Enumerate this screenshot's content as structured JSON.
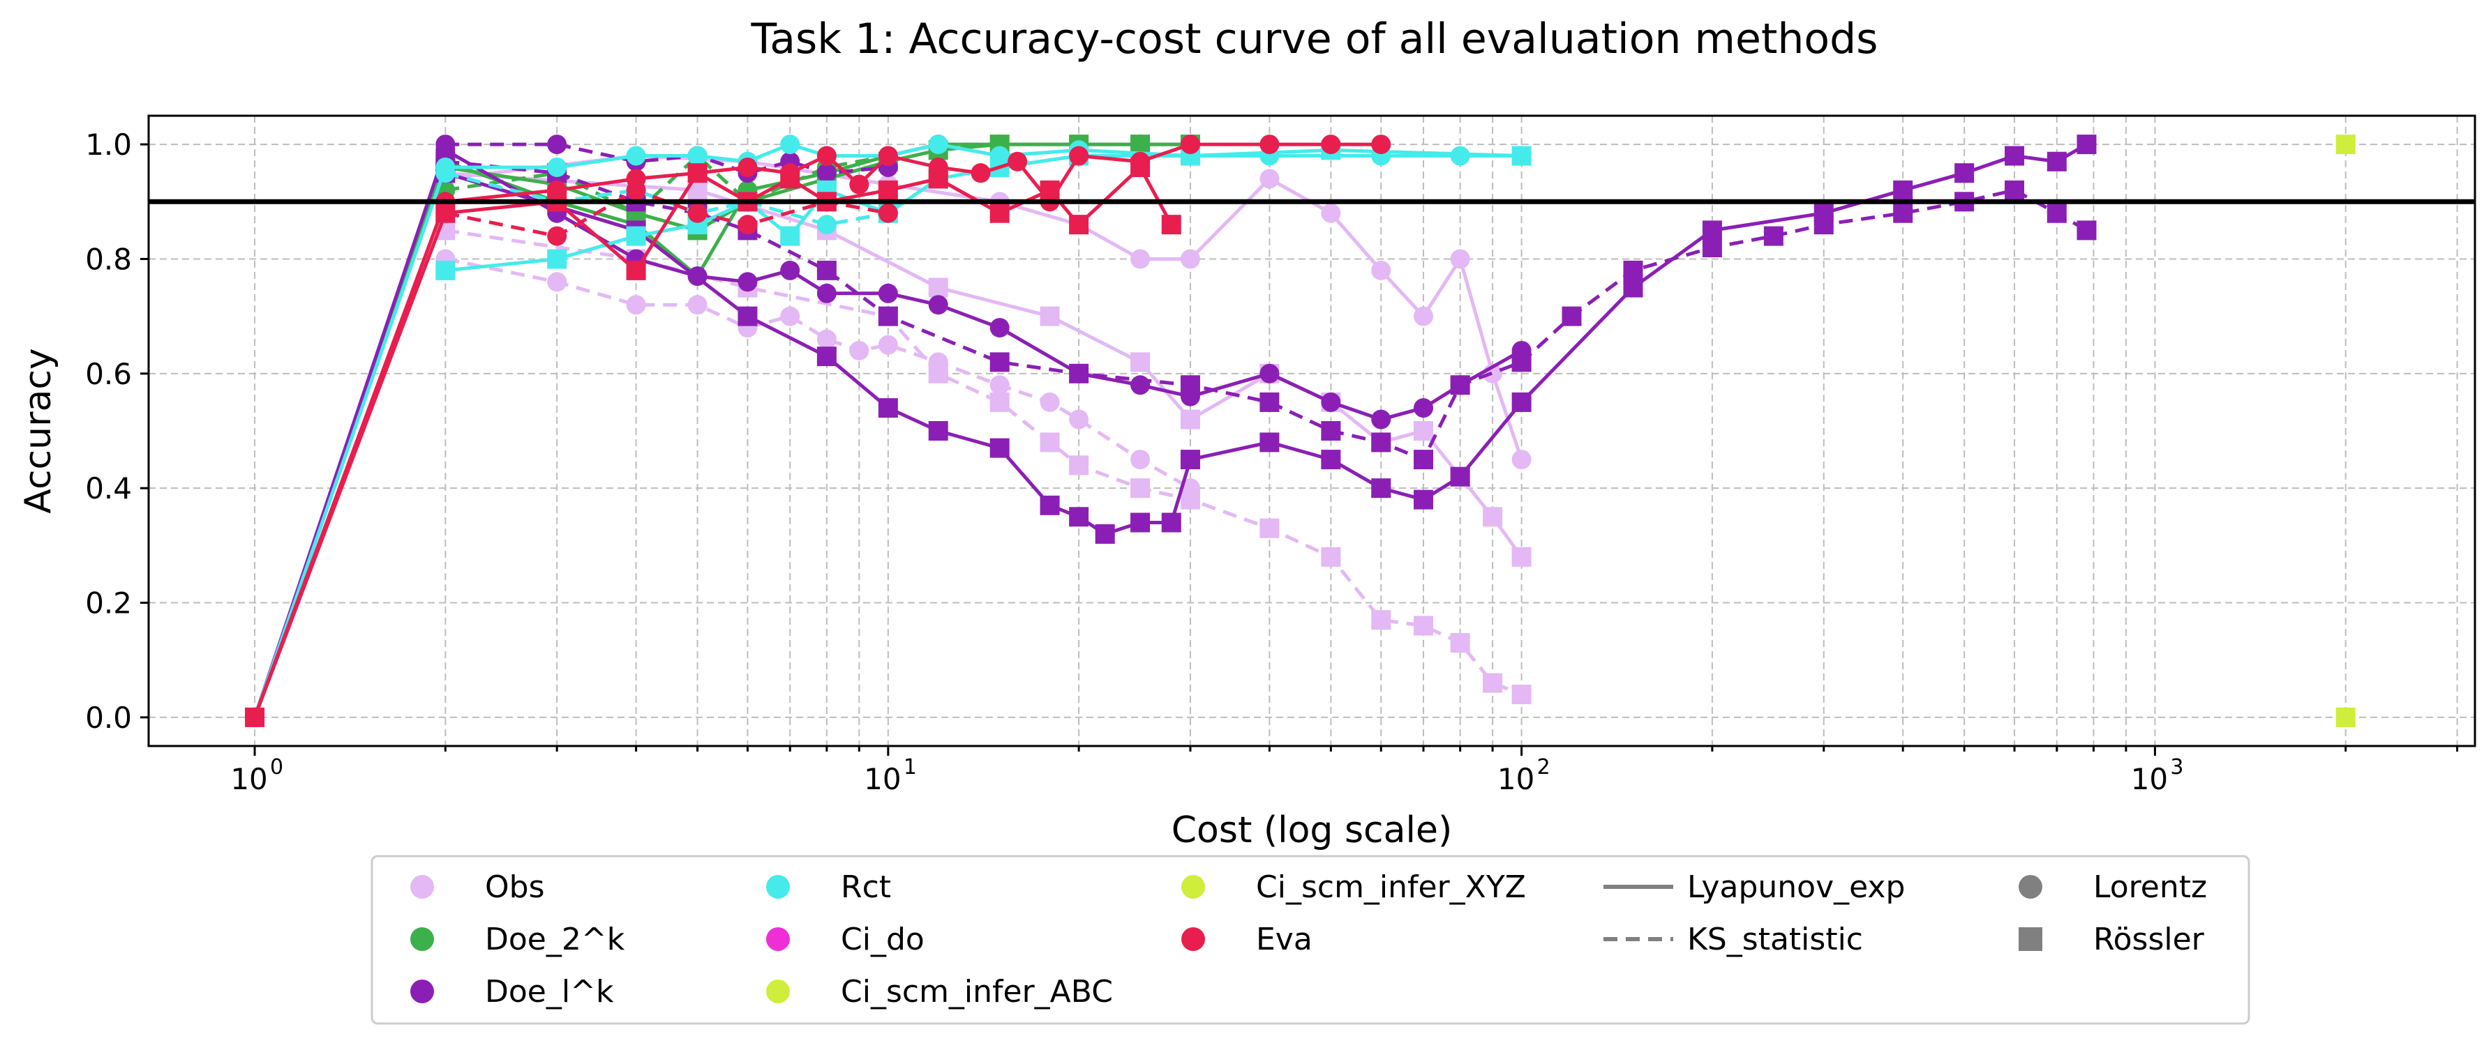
{
  "chart_data": {
    "type": "line",
    "title": "Task 1: Accuracy-cost curve of all evaluation methods",
    "xlabel": "Cost (log scale)",
    "ylabel": "Accuracy",
    "xscale": "log",
    "xlim": [
      0.68,
      3200
    ],
    "ylim": [
      -0.05,
      1.05
    ],
    "x_tick_labels": [
      {
        "value": 1,
        "base": "10",
        "exp": "0"
      },
      {
        "value": 10,
        "base": "10",
        "exp": "1"
      },
      {
        "value": 100,
        "base": "10",
        "exp": "2"
      },
      {
        "value": 1000,
        "base": "10",
        "exp": "3"
      }
    ],
    "y_ticks": [
      0.0,
      0.2,
      0.4,
      0.6,
      0.8,
      1.0
    ],
    "y_tick_labels": [
      "0.0",
      "0.2",
      "0.4",
      "0.6",
      "0.8",
      "1.0"
    ],
    "grid": true,
    "reference_line": {
      "y": 0.9,
      "color": "#000000"
    },
    "legend": {
      "placement": "below-center",
      "methods": [
        {
          "name": "Obs",
          "color": "#e3b8f5"
        },
        {
          "name": "Doe_2^k",
          "color": "#3cb04a"
        },
        {
          "name": "Doe_l^k",
          "color": "#8b1fb5"
        },
        {
          "name": "Rct",
          "color": "#45ebeb"
        },
        {
          "name": "Ci_do",
          "color": "#ee2fd6"
        },
        {
          "name": "Ci_scm_infer_ABC",
          "color": "#cfee3c"
        },
        {
          "name": "Ci_scm_infer_XYZ",
          "color": "#cfee3c"
        },
        {
          "name": "Eva",
          "color": "#e81e4f"
        }
      ],
      "metrics": [
        {
          "name": "Lyapunov_exp",
          "style": "solid"
        },
        {
          "name": "KS_statistic",
          "style": "dashed"
        }
      ],
      "systems": [
        {
          "name": "Lorentz",
          "marker": "circle"
        },
        {
          "name": "Rössler",
          "marker": "square"
        }
      ]
    },
    "series": [
      {
        "name": "Obs Lyapunov_exp Lorentz",
        "method": "Obs",
        "metric": "Lyapunov_exp",
        "system": "Lorentz",
        "color": "#e3b8f5",
        "x": [
          2,
          4,
          6,
          10,
          15,
          20,
          25,
          30,
          40,
          50,
          60,
          70,
          80,
          90,
          100
        ],
        "y": [
          0.94,
          0.98,
          0.97,
          0.93,
          0.9,
          0.86,
          0.8,
          0.8,
          0.94,
          0.88,
          0.78,
          0.7,
          0.8,
          0.6,
          0.45
        ]
      },
      {
        "name": "Obs KS_statistic Lorentz",
        "method": "Obs",
        "metric": "KS_statistic",
        "system": "Lorentz",
        "color": "#e3b8f5",
        "x": [
          2,
          3,
          4,
          5,
          6,
          7,
          8,
          9,
          10,
          12,
          15,
          18,
          20,
          25,
          30
        ],
        "y": [
          0.8,
          0.76,
          0.72,
          0.72,
          0.68,
          0.7,
          0.66,
          0.64,
          0.65,
          0.62,
          0.58,
          0.55,
          0.52,
          0.45,
          0.4
        ]
      },
      {
        "name": "Obs Lyapunov_exp Rössler",
        "method": "Obs",
        "metric": "Lyapunov_exp",
        "system": "Rössler",
        "color": "#e3b8f5",
        "x": [
          2,
          5,
          8,
          12,
          18,
          25,
          30,
          40,
          50,
          60,
          70,
          80,
          90,
          100
        ],
        "y": [
          0.95,
          0.92,
          0.85,
          0.75,
          0.7,
          0.62,
          0.52,
          0.6,
          0.55,
          0.48,
          0.5,
          0.42,
          0.35,
          0.28
        ]
      },
      {
        "name": "Obs KS_statistic Rössler",
        "method": "Obs",
        "metric": "KS_statistic",
        "system": "Rössler",
        "color": "#e3b8f5",
        "x": [
          2,
          4,
          6,
          10,
          12,
          15,
          18,
          20,
          25,
          30,
          40,
          50,
          60,
          70,
          80,
          90,
          100
        ],
        "y": [
          0.85,
          0.8,
          0.75,
          0.7,
          0.6,
          0.55,
          0.48,
          0.44,
          0.4,
          0.38,
          0.33,
          0.28,
          0.17,
          0.16,
          0.13,
          0.06,
          0.04
        ]
      },
      {
        "name": "Doe_2^k Lyapunov_exp Lorentz",
        "method": "Doe_2^k",
        "metric": "Lyapunov_exp",
        "system": "Lorentz",
        "color": "#3cb04a",
        "x": [
          1,
          2,
          3,
          4,
          5,
          6,
          8,
          10,
          12,
          15,
          20,
          25,
          30
        ],
        "y": [
          0.0,
          0.97,
          0.9,
          0.86,
          0.77,
          0.92,
          0.95,
          0.98,
          1.0,
          1.0,
          1.0,
          1.0,
          1.0
        ]
      },
      {
        "name": "Doe_2^k KS_statistic Lorentz",
        "method": "Doe_2^k",
        "metric": "KS_statistic",
        "system": "Lorentz",
        "color": "#3cb04a",
        "x": [
          2,
          3,
          4,
          5,
          6,
          8,
          10,
          12,
          15
        ],
        "y": [
          0.92,
          0.95,
          0.88,
          0.98,
          0.9,
          0.96,
          0.98,
          1.0,
          1.0
        ]
      },
      {
        "name": "Doe_2^k Lyapunov_exp Rössler",
        "method": "Doe_2^k",
        "metric": "Lyapunov_exp",
        "system": "Rössler",
        "color": "#3cb04a",
        "x": [
          2,
          3,
          4,
          5,
          6,
          8,
          10,
          12,
          15,
          20,
          25,
          30
        ],
        "y": [
          0.96,
          0.93,
          0.88,
          0.85,
          0.9,
          0.94,
          0.97,
          0.99,
          1.0,
          1.0,
          1.0,
          1.0
        ]
      },
      {
        "name": "Doe_l^k Lyapunov_exp Lorentz",
        "method": "Doe_l^k",
        "metric": "Lyapunov_exp",
        "system": "Lorentz",
        "color": "#8b1fb5",
        "x": [
          1,
          2,
          3,
          4,
          5,
          6,
          7,
          8,
          10,
          12,
          15,
          20,
          25,
          30,
          40,
          50,
          60,
          70,
          80,
          100
        ],
        "y": [
          0.0,
          0.99,
          0.88,
          0.8,
          0.77,
          0.76,
          0.78,
          0.74,
          0.74,
          0.72,
          0.68,
          0.6,
          0.58,
          0.56,
          0.6,
          0.55,
          0.52,
          0.54,
          0.58,
          0.64
        ]
      },
      {
        "name": "Doe_l^k KS_statistic Lorentz",
        "method": "Doe_l^k",
        "metric": "KS_statistic",
        "system": "Lorentz",
        "color": "#8b1fb5",
        "x": [
          2,
          3,
          4,
          5,
          6,
          7,
          8,
          10
        ],
        "y": [
          1.0,
          1.0,
          0.97,
          0.98,
          0.95,
          0.97,
          0.95,
          0.96
        ]
      },
      {
        "name": "Doe_l^k Lyapunov_exp Rössler",
        "method": "Doe_l^k",
        "metric": "Lyapunov_exp",
        "system": "Rössler",
        "color": "#8b1fb5",
        "x": [
          2,
          4,
          6,
          8,
          10,
          12,
          15,
          18,
          20,
          22,
          25,
          28,
          30,
          40,
          50,
          60,
          70,
          80,
          100,
          150,
          200,
          300,
          400,
          500,
          600,
          700,
          780
        ],
        "y": [
          0.95,
          0.85,
          0.7,
          0.63,
          0.54,
          0.5,
          0.47,
          0.37,
          0.35,
          0.32,
          0.34,
          0.34,
          0.45,
          0.48,
          0.45,
          0.4,
          0.38,
          0.42,
          0.55,
          0.75,
          0.85,
          0.88,
          0.92,
          0.95,
          0.98,
          0.97,
          1.0
        ]
      },
      {
        "name": "Doe_l^k KS_statistic Rössler",
        "method": "Doe_l^k",
        "metric": "KS_statistic",
        "system": "Rössler",
        "color": "#8b1fb5",
        "x": [
          2,
          3,
          4,
          5,
          6,
          8,
          10,
          15,
          20,
          30,
          40,
          50,
          60,
          70,
          80,
          100,
          120,
          150,
          200,
          250,
          300,
          400,
          500,
          600,
          700,
          780
        ],
        "y": [
          0.97,
          0.95,
          0.9,
          0.88,
          0.85,
          0.78,
          0.7,
          0.62,
          0.6,
          0.58,
          0.55,
          0.5,
          0.48,
          0.45,
          0.58,
          0.62,
          0.7,
          0.78,
          0.82,
          0.84,
          0.86,
          0.88,
          0.9,
          0.92,
          0.88,
          0.85
        ]
      },
      {
        "name": "Rct Lyapunov_exp Lorentz",
        "method": "Rct",
        "metric": "Lyapunov_exp",
        "system": "Lorentz",
        "color": "#45ebeb",
        "x": [
          1,
          2,
          3,
          4,
          5,
          6,
          7,
          8,
          10,
          12,
          15,
          20,
          30,
          40,
          60,
          80,
          100
        ],
        "y": [
          0.0,
          0.96,
          0.96,
          0.98,
          0.98,
          0.97,
          1.0,
          0.98,
          0.98,
          1.0,
          0.98,
          0.99,
          0.98,
          0.98,
          0.98,
          0.98,
          0.98
        ]
      },
      {
        "name": "Rct KS_statistic Lorentz",
        "method": "Rct",
        "metric": "KS_statistic",
        "system": "Lorentz",
        "color": "#45ebeb",
        "x": [
          2,
          3,
          4,
          5,
          6,
          8,
          10
        ],
        "y": [
          0.95,
          0.9,
          0.92,
          0.88,
          0.9,
          0.86,
          0.88
        ]
      },
      {
        "name": "Rct Lyapunov_exp Rössler",
        "method": "Rct",
        "metric": "Lyapunov_exp",
        "system": "Rössler",
        "color": "#45ebeb",
        "x": [
          2,
          3,
          4,
          5,
          6,
          7,
          8,
          10,
          12,
          15,
          20,
          30,
          50,
          100
        ],
        "y": [
          0.78,
          0.8,
          0.84,
          0.86,
          0.9,
          0.84,
          0.92,
          0.88,
          0.94,
          0.96,
          0.98,
          0.98,
          0.99,
          0.98
        ]
      },
      {
        "name": "Ci_scm_infer_ABC",
        "method": "Ci_scm_infer_ABC",
        "metric": "Lyapunov_exp",
        "system": "Rössler",
        "color": "#cfee3c",
        "x": [
          2000
        ],
        "y": [
          1.0
        ]
      },
      {
        "name": "Ci_scm_infer_XYZ",
        "method": "Ci_scm_infer_XYZ",
        "metric": "Lyapunov_exp",
        "system": "Rössler",
        "color": "#cfee3c",
        "x": [
          2000
        ],
        "y": [
          0.0
        ]
      },
      {
        "name": "Eva Lyapunov_exp Lorentz",
        "method": "Eva",
        "metric": "Lyapunov_exp",
        "system": "Lorentz",
        "color": "#e81e4f",
        "x": [
          1,
          2,
          3,
          4,
          5,
          6,
          7,
          8,
          9,
          10,
          12,
          14,
          16,
          18,
          20,
          25,
          30,
          40,
          50,
          60
        ],
        "y": [
          0.0,
          0.9,
          0.92,
          0.94,
          0.95,
          0.96,
          0.95,
          0.98,
          0.93,
          0.98,
          0.96,
          0.95,
          0.97,
          0.9,
          0.98,
          0.97,
          1.0,
          1.0,
          1.0,
          1.0
        ]
      },
      {
        "name": "Eva KS_statistic Lorentz",
        "method": "Eva",
        "metric": "KS_statistic",
        "system": "Lorentz",
        "color": "#e81e4f",
        "x": [
          2,
          3,
          4,
          5,
          6,
          8,
          10
        ],
        "y": [
          0.88,
          0.84,
          0.92,
          0.88,
          0.86,
          0.9,
          0.88
        ]
      },
      {
        "name": "Eva Lyapunov_exp Rössler",
        "method": "Eva",
        "metric": "Lyapunov_exp",
        "system": "Rössler",
        "color": "#e81e4f",
        "x": [
          1,
          2,
          3,
          4,
          5,
          6,
          7,
          8,
          10,
          12,
          15,
          18,
          20,
          25,
          28
        ],
        "y": [
          0.0,
          0.88,
          0.9,
          0.78,
          0.95,
          0.9,
          0.94,
          0.9,
          0.92,
          0.94,
          0.88,
          0.92,
          0.86,
          0.96,
          0.86
        ]
      }
    ]
  }
}
